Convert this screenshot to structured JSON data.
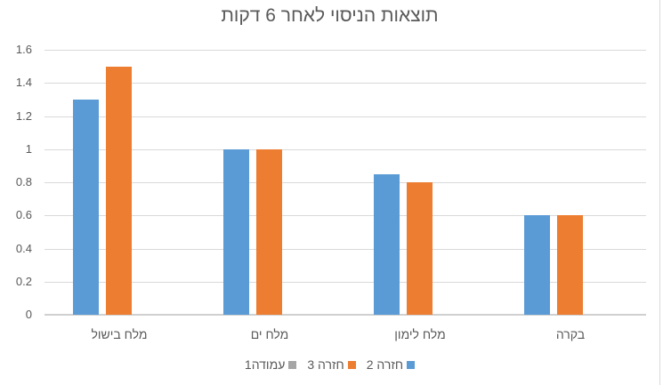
{
  "chart_data": {
    "type": "bar",
    "title": "תוצאות הניסוי לאחר 6 דקות",
    "categories": [
      "מלח בישול",
      "מלח ים",
      "מלח לימון",
      "בקרה"
    ],
    "series": [
      {
        "name": "חזרה 2",
        "color": "#5b9bd5",
        "values": [
          1.3,
          1.0,
          0.85,
          0.6
        ]
      },
      {
        "name": "חזרה 3",
        "color": "#ed7d31",
        "values": [
          1.5,
          1.0,
          0.8,
          0.6
        ]
      },
      {
        "name": "עמודה1",
        "color": "#a5a5a5",
        "values": [
          null,
          null,
          null,
          null
        ]
      }
    ],
    "xlabel": "",
    "ylabel": "",
    "ylim": [
      0,
      1.6
    ],
    "yticks": [
      "0",
      "0.2",
      "0.4",
      "0.6",
      "0.8",
      "1",
      "1.2",
      "1.4",
      "1.6"
    ],
    "grid": true,
    "legend_position": "bottom"
  }
}
